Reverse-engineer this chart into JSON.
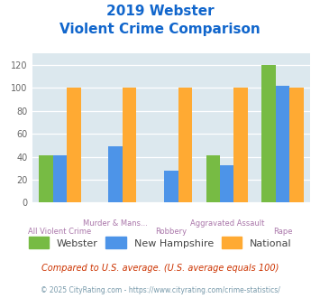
{
  "title_line1": "2019 Webster",
  "title_line2": "Violent Crime Comparison",
  "categories": [
    "All Violent Crime",
    "Murder & Mans...",
    "Robbery",
    "Aggravated Assault",
    "Rape"
  ],
  "webster": [
    41,
    0,
    0,
    41,
    120
  ],
  "new_hampshire": [
    41,
    49,
    28,
    33,
    102
  ],
  "national": [
    100,
    100,
    100,
    100,
    100
  ],
  "webster_color": "#77bb44",
  "nh_color": "#4d94e8",
  "national_color": "#ffaa33",
  "ylim": [
    0,
    130
  ],
  "yticks": [
    0,
    20,
    40,
    60,
    80,
    100,
    120
  ],
  "bg_color": "#dce8ee",
  "title_color": "#1166cc",
  "xlabel_color": "#aa77aa",
  "legend_labels": [
    "Webster",
    "New Hampshire",
    "National"
  ],
  "footnote1": "Compared to U.S. average. (U.S. average equals 100)",
  "footnote2": "© 2025 CityRating.com - https://www.cityrating.com/crime-statistics/",
  "footnote1_color": "#cc3300",
  "footnote2_color": "#7799aa"
}
